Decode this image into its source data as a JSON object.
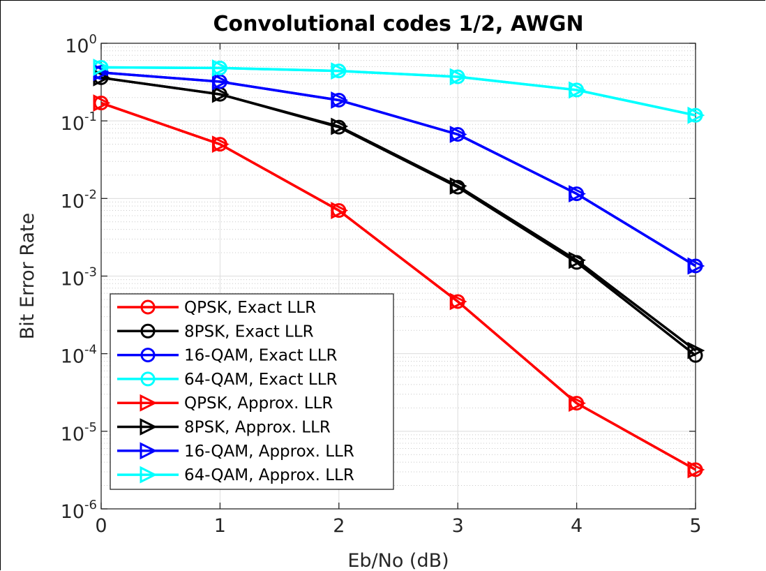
{
  "chart_data": {
    "type": "line",
    "title": "Convolutional codes 1/2, AWGN",
    "xlabel": "Eb/No (dB)",
    "ylabel": "Bit Error Rate",
    "yscale": "log",
    "xlim": [
      0,
      5
    ],
    "ylim": [
      1e-06,
      1
    ],
    "grid": true,
    "minor_grid": true,
    "legend_position": "bottom-left",
    "x_ticks": [
      "0",
      "1",
      "2",
      "3",
      "4",
      "5"
    ],
    "y_ticks": [
      {
        "base": "10",
        "exp": "0",
        "value": 1
      },
      {
        "base": "10",
        "exp": "-1",
        "value": 0.1
      },
      {
        "base": "10",
        "exp": "-2",
        "value": 0.01
      },
      {
        "base": "10",
        "exp": "-3",
        "value": 0.001
      },
      {
        "base": "10",
        "exp": "-4",
        "value": 0.0001
      },
      {
        "base": "10",
        "exp": "-5",
        "value": 1e-05
      },
      {
        "base": "10",
        "exp": "-6",
        "value": 1e-06
      }
    ],
    "x": [
      0,
      1,
      2,
      3,
      4,
      5
    ],
    "series": [
      {
        "name": "QPSK, Exact LLR",
        "color": "#ff0000",
        "marker": "circle",
        "values": [
          0.17,
          0.05,
          0.007,
          0.00047,
          2.3e-05,
          3.2e-06
        ]
      },
      {
        "name": "8PSK, Exact LLR",
        "color": "#000000",
        "marker": "circle",
        "values": [
          0.36,
          0.22,
          0.083,
          0.014,
          0.0015,
          9.5e-05
        ]
      },
      {
        "name": "16-QAM, Exact LLR",
        "color": "#0000ff",
        "marker": "circle",
        "values": [
          0.42,
          0.32,
          0.185,
          0.067,
          0.0115,
          0.00135
        ]
      },
      {
        "name": "64-QAM, Exact LLR",
        "color": "#00ffff",
        "marker": "circle",
        "values": [
          0.49,
          0.48,
          0.44,
          0.37,
          0.25,
          0.118
        ]
      },
      {
        "name": "QPSK, Approx. LLR",
        "color": "#ff0000",
        "marker": "triangle-right",
        "values": [
          0.17,
          0.05,
          0.007,
          0.00047,
          2.3e-05,
          3.2e-06
        ]
      },
      {
        "name": "8PSK, Approx. LLR",
        "color": "#000000",
        "marker": "triangle-right",
        "values": [
          0.36,
          0.22,
          0.085,
          0.0145,
          0.0016,
          0.00011
        ]
      },
      {
        "name": "16-QAM, Approx. LLR",
        "color": "#0000ff",
        "marker": "triangle-right",
        "values": [
          0.42,
          0.32,
          0.185,
          0.067,
          0.0115,
          0.00135
        ]
      },
      {
        "name": "64-QAM, Approx. LLR",
        "color": "#00ffff",
        "marker": "triangle-right",
        "values": [
          0.49,
          0.48,
          0.44,
          0.37,
          0.25,
          0.118
        ]
      }
    ]
  }
}
